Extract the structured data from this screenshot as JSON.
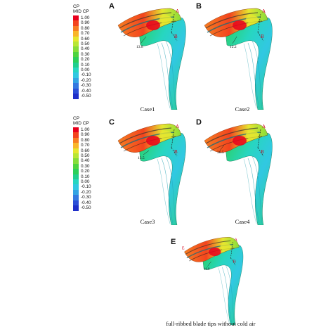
{
  "colorbars": [
    {
      "title_line1": "CP",
      "title_line2": "MID CP",
      "ticks": [
        "1.00",
        "0.90",
        "0.80",
        "0.70",
        "0.60",
        "0.50",
        "0.40",
        "0.30",
        "0.20",
        "0.10",
        "0.00",
        "-0.10",
        "-0.20",
        "-0.30",
        "-0.40",
        "-0.50"
      ],
      "colors": [
        "#e8001c",
        "#f3441e",
        "#f77d22",
        "#f9b52a",
        "#e6e62f",
        "#b8e635",
        "#86dd3a",
        "#4ed43f",
        "#2bcf5a",
        "#1fcf8e",
        "#27d6c0",
        "#31c8e2",
        "#34a4e3",
        "#3579e0",
        "#2c4fd7",
        "#1f2fc9"
      ]
    }
  ],
  "panels": [
    {
      "letter": "A",
      "caption": "Case1",
      "label_a": "A",
      "label_b": "B",
      "measure": "13.8"
    },
    {
      "letter": "B",
      "caption": "Case2",
      "label_a": "A",
      "label_b": "B",
      "measure": "12.2"
    },
    {
      "letter": "C",
      "caption": "Case3",
      "label_a": "A",
      "label_b": "B",
      "measure": "13.5"
    },
    {
      "letter": "D",
      "caption": "Case4",
      "label_a": "A",
      "label_b": "B",
      "measure": "36.5"
    },
    {
      "letter": "E",
      "caption": "full-ribbed blade tips without cold air",
      "label_a": "A",
      "label_b": "B",
      "measure": "16.9",
      "label_extra": "E"
    }
  ],
  "icons": {
    "blade": "blade-tip-pressure-contour"
  }
}
